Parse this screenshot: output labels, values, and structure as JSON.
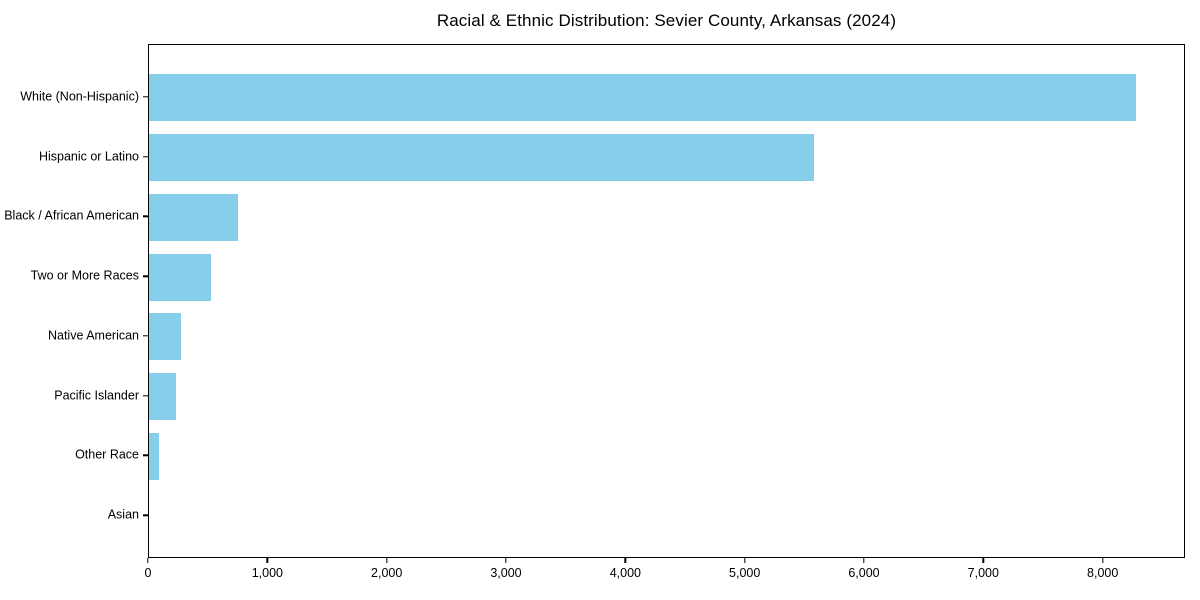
{
  "chart_data": {
    "type": "bar",
    "orientation": "horizontal",
    "title": "Racial & Ethnic Distribution: Sevier County, Arkansas (2024)",
    "categories": [
      "White (Non-Hispanic)",
      "Hispanic or Latino",
      "Black / African American",
      "Two or More Races",
      "Native American",
      "Pacific Islander",
      "Other Race",
      "Asian"
    ],
    "values": [
      8270,
      5570,
      750,
      520,
      265,
      230,
      85,
      0
    ],
    "xlabel": "",
    "ylabel": "",
    "xlim": [
      0,
      8690
    ],
    "x_ticks": [
      0,
      1000,
      2000,
      3000,
      4000,
      5000,
      6000,
      7000,
      8000
    ],
    "x_tick_labels": [
      "0",
      "1,000",
      "2,000",
      "3,000",
      "4,000",
      "5,000",
      "6,000",
      "7,000",
      "8,000"
    ],
    "bar_color": "#87CEEB",
    "text_color": "#000000",
    "grid": false,
    "legend": false,
    "sorted": "descending"
  }
}
